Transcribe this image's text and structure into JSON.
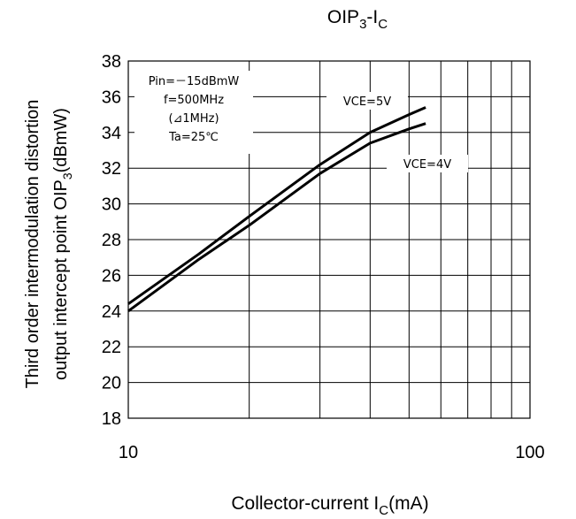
{
  "chart_data": {
    "type": "line",
    "title": {
      "main": "OIP",
      "sub1": "3",
      "mid": "-I",
      "sub2": "C"
    },
    "xlabel": {
      "main": "Collector-current I",
      "sub": "C",
      "unit": "(mA)"
    },
    "ylabel": {
      "line1": "Third order intermodulation distortion",
      "line2_a": "output intercept point   OIP",
      "line2_sub": "3",
      "line2_b": "(dBmW)"
    },
    "x_scale": "log",
    "xlim": [
      10,
      100
    ],
    "ylim": [
      18,
      38
    ],
    "x_ticks": [
      {
        "value": 10,
        "label": "10"
      },
      {
        "value": 100,
        "label": "100"
      }
    ],
    "y_ticks": [
      {
        "value": 18,
        "label": "18"
      },
      {
        "value": 20,
        "label": "20"
      },
      {
        "value": 22,
        "label": "22"
      },
      {
        "value": 24,
        "label": "24"
      },
      {
        "value": 26,
        "label": "26"
      },
      {
        "value": 28,
        "label": "28"
      },
      {
        "value": 30,
        "label": "30"
      },
      {
        "value": 32,
        "label": "32"
      },
      {
        "value": 34,
        "label": "34"
      },
      {
        "value": 36,
        "label": "36"
      },
      {
        "value": 38,
        "label": "38"
      }
    ],
    "grid": true,
    "conditions": [
      "Pin=－15dBmW",
      "f=500MHz",
      "(⊿1MHz)",
      "Ta=25℃"
    ],
    "series": [
      {
        "name": "VCE=5V",
        "points": [
          [
            10,
            24.4
          ],
          [
            15,
            27.2
          ],
          [
            20,
            29.3
          ],
          [
            30,
            32.2
          ],
          [
            40,
            34.0
          ],
          [
            50,
            35.0
          ],
          [
            55,
            35.4
          ]
        ]
      },
      {
        "name": "VCE=4V",
        "points": [
          [
            10,
            24.0
          ],
          [
            15,
            26.9
          ],
          [
            20,
            28.8
          ],
          [
            30,
            31.7
          ],
          [
            40,
            33.4
          ],
          [
            50,
            34.2
          ],
          [
            55,
            34.5
          ]
        ]
      }
    ],
    "colors": {
      "line": "#000000",
      "grid": "#000000",
      "background": "#ffffff"
    }
  }
}
